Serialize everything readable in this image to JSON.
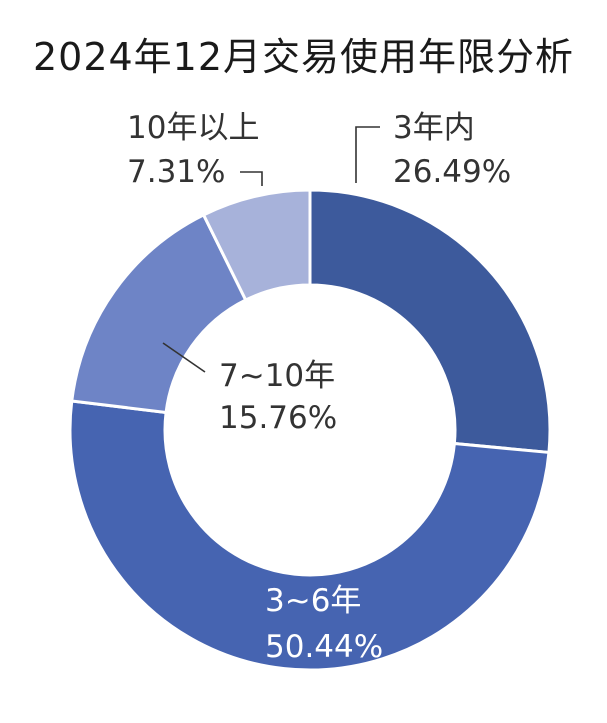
{
  "chart_data": {
    "type": "pie",
    "style": "donut",
    "title": "2024年12月交易使用年限分析",
    "slices": [
      {
        "label": "3年内",
        "value": 26.49,
        "value_text": "26.49%",
        "color": "#3d5a9c"
      },
      {
        "label": "3~6年",
        "value": 50.44,
        "value_text": "50.44%",
        "color": "#4664b1"
      },
      {
        "label": "7~10年",
        "value": 15.76,
        "value_text": "15.76%",
        "color": "#6e84c6"
      },
      {
        "label": "10年以上",
        "value": 7.31,
        "value_text": "7.31%",
        "color": "#a7b2da"
      }
    ]
  }
}
